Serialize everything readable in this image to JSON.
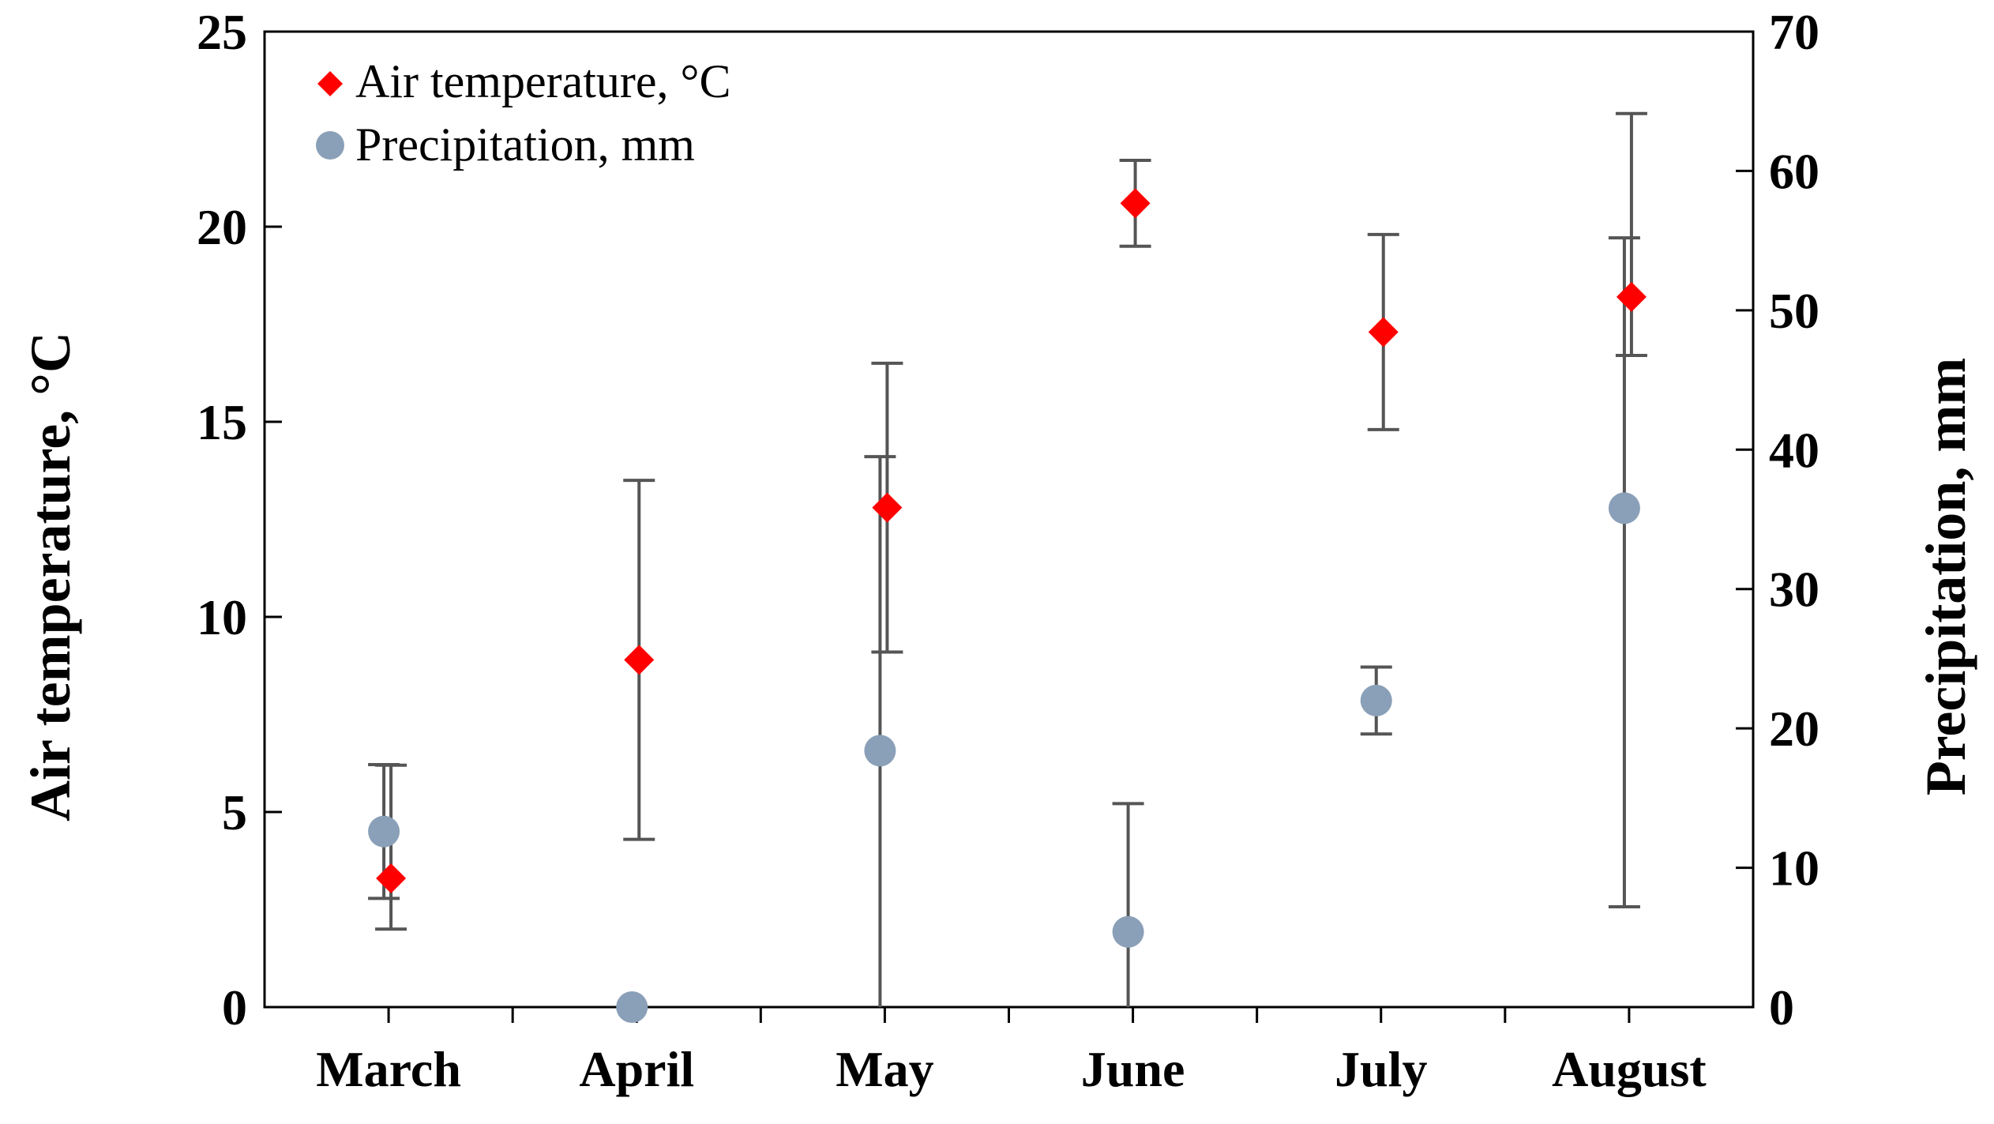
{
  "chart_data": {
    "type": "scatter",
    "categories": [
      "March",
      "April",
      "May",
      "June",
      "July",
      "August"
    ],
    "colors": {
      "temperature": "#ff0000",
      "precipitation": "#8aa0b8",
      "errorbar": "#555555"
    },
    "left_axis": {
      "label": "Air temperature, °C",
      "ylim": [
        0,
        25
      ],
      "ticks": [
        "0",
        "5",
        "10",
        "15",
        "20",
        "25"
      ],
      "tick_values": [
        0,
        5,
        10,
        15,
        20,
        25
      ]
    },
    "right_axis": {
      "label": "Precipitation, mm",
      "ylim": [
        0,
        70
      ],
      "ticks": [
        "0",
        "10",
        "20",
        "30",
        "40",
        "50",
        "60",
        "70"
      ],
      "tick_values": [
        0,
        10,
        20,
        30,
        40,
        50,
        60,
        70
      ]
    },
    "legend": {
      "placement": "top-left",
      "entries": [
        "Air temperature, °C",
        "Precipitation, mm"
      ]
    },
    "series": [
      {
        "name": "Air temperature, °C",
        "axis": "left",
        "marker": "diamond",
        "values": [
          3.3,
          8.9,
          12.8,
          20.6,
          17.3,
          18.2
        ],
        "err_low": [
          2.0,
          4.3,
          9.1,
          19.5,
          14.8,
          16.7
        ],
        "err_high": [
          6.2,
          13.5,
          16.5,
          21.7,
          19.8,
          22.9
        ]
      },
      {
        "name": "Precipitation, mm",
        "axis": "right",
        "marker": "circle",
        "values": [
          12.6,
          0.0,
          18.4,
          5.4,
          22.0,
          35.8
        ],
        "err_low": [
          7.8,
          0.0,
          0.0,
          0.0,
          19.6,
          7.2
        ],
        "err_high": [
          17.4,
          0.0,
          39.5,
          14.6,
          24.4,
          55.2
        ]
      }
    ]
  }
}
